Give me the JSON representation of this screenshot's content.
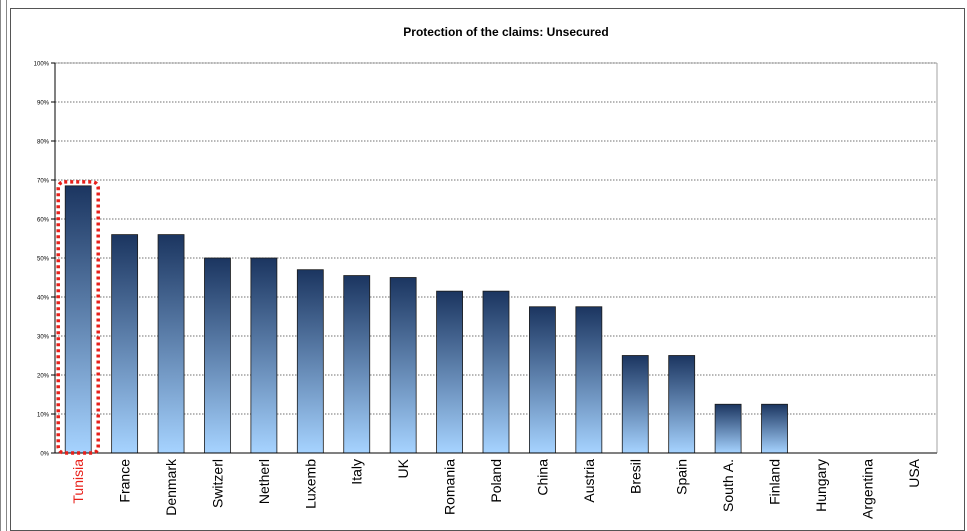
{
  "chart_data": {
    "type": "bar",
    "title": "Protection of the claims: Unsecured",
    "xlabel": "",
    "ylabel": "",
    "ylim": [
      0,
      100
    ],
    "y_ticks": [
      "0%",
      "10%",
      "20%",
      "30%",
      "40%",
      "50%",
      "60%",
      "70%",
      "80%",
      "90%",
      "100%"
    ],
    "grid": true,
    "categories": [
      "Tunisia",
      "France",
      "Denmark",
      "Switzerl",
      "Netherl",
      "Luxemb",
      "Italy",
      "UK",
      "Romania",
      "Poland",
      "China",
      "Austria",
      "Bresil",
      "Spain",
      "South A.",
      "Finland",
      "Hungary",
      "Argentina",
      "USA"
    ],
    "values": [
      68.5,
      56,
      56,
      50,
      50,
      47,
      45.5,
      45,
      41.5,
      41.5,
      37.5,
      37.5,
      25,
      25,
      12.5,
      12.5,
      0,
      0,
      0
    ],
    "highlight": {
      "category": "Tunisia",
      "label_color": "#e8201a",
      "outline_color": "#e8201a"
    },
    "colors": {
      "bar_top": "#1b3560",
      "bar_bottom": "#a6d3ff",
      "bar_stroke": "#1a1a1a",
      "grid": "#444444"
    }
  }
}
